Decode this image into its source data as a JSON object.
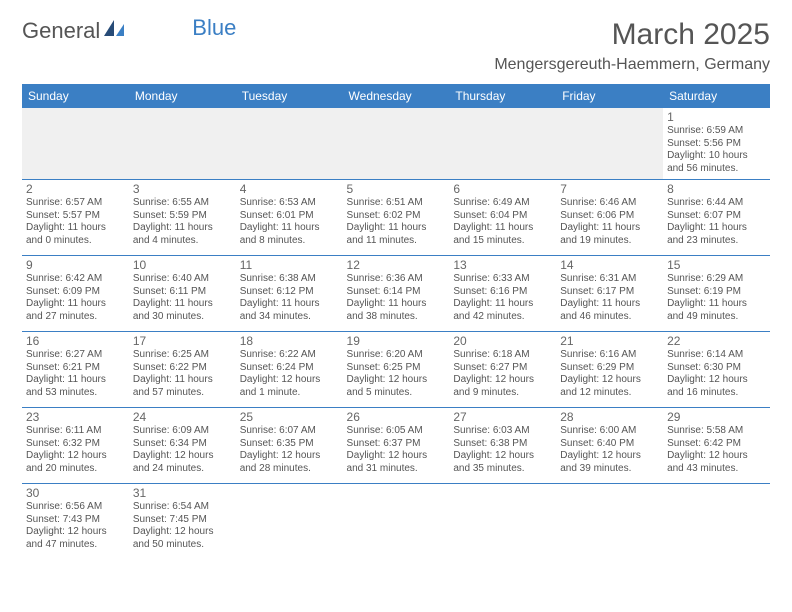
{
  "logo": {
    "name_a": "General",
    "name_b": "Blue"
  },
  "title": "March 2025",
  "location": "Mengersgereuth-Haemmern, Germany",
  "colors": {
    "header_bg": "#3b7fc4",
    "header_fg": "#ffffff",
    "border": "#3b7fc4",
    "text": "#555555",
    "background": "#ffffff",
    "empty_week_bg": "#f0f0f0"
  },
  "day_headers": [
    "Sunday",
    "Monday",
    "Tuesday",
    "Wednesday",
    "Thursday",
    "Friday",
    "Saturday"
  ],
  "weeks": [
    [
      null,
      null,
      null,
      null,
      null,
      null,
      {
        "num": "1",
        "sunrise": "Sunrise: 6:59 AM",
        "sunset": "Sunset: 5:56 PM",
        "daylight": "Daylight: 10 hours and 56 minutes."
      }
    ],
    [
      {
        "num": "2",
        "sunrise": "Sunrise: 6:57 AM",
        "sunset": "Sunset: 5:57 PM",
        "daylight": "Daylight: 11 hours and 0 minutes."
      },
      {
        "num": "3",
        "sunrise": "Sunrise: 6:55 AM",
        "sunset": "Sunset: 5:59 PM",
        "daylight": "Daylight: 11 hours and 4 minutes."
      },
      {
        "num": "4",
        "sunrise": "Sunrise: 6:53 AM",
        "sunset": "Sunset: 6:01 PM",
        "daylight": "Daylight: 11 hours and 8 minutes."
      },
      {
        "num": "5",
        "sunrise": "Sunrise: 6:51 AM",
        "sunset": "Sunset: 6:02 PM",
        "daylight": "Daylight: 11 hours and 11 minutes."
      },
      {
        "num": "6",
        "sunrise": "Sunrise: 6:49 AM",
        "sunset": "Sunset: 6:04 PM",
        "daylight": "Daylight: 11 hours and 15 minutes."
      },
      {
        "num": "7",
        "sunrise": "Sunrise: 6:46 AM",
        "sunset": "Sunset: 6:06 PM",
        "daylight": "Daylight: 11 hours and 19 minutes."
      },
      {
        "num": "8",
        "sunrise": "Sunrise: 6:44 AM",
        "sunset": "Sunset: 6:07 PM",
        "daylight": "Daylight: 11 hours and 23 minutes."
      }
    ],
    [
      {
        "num": "9",
        "sunrise": "Sunrise: 6:42 AM",
        "sunset": "Sunset: 6:09 PM",
        "daylight": "Daylight: 11 hours and 27 minutes."
      },
      {
        "num": "10",
        "sunrise": "Sunrise: 6:40 AM",
        "sunset": "Sunset: 6:11 PM",
        "daylight": "Daylight: 11 hours and 30 minutes."
      },
      {
        "num": "11",
        "sunrise": "Sunrise: 6:38 AM",
        "sunset": "Sunset: 6:12 PM",
        "daylight": "Daylight: 11 hours and 34 minutes."
      },
      {
        "num": "12",
        "sunrise": "Sunrise: 6:36 AM",
        "sunset": "Sunset: 6:14 PM",
        "daylight": "Daylight: 11 hours and 38 minutes."
      },
      {
        "num": "13",
        "sunrise": "Sunrise: 6:33 AM",
        "sunset": "Sunset: 6:16 PM",
        "daylight": "Daylight: 11 hours and 42 minutes."
      },
      {
        "num": "14",
        "sunrise": "Sunrise: 6:31 AM",
        "sunset": "Sunset: 6:17 PM",
        "daylight": "Daylight: 11 hours and 46 minutes."
      },
      {
        "num": "15",
        "sunrise": "Sunrise: 6:29 AM",
        "sunset": "Sunset: 6:19 PM",
        "daylight": "Daylight: 11 hours and 49 minutes."
      }
    ],
    [
      {
        "num": "16",
        "sunrise": "Sunrise: 6:27 AM",
        "sunset": "Sunset: 6:21 PM",
        "daylight": "Daylight: 11 hours and 53 minutes."
      },
      {
        "num": "17",
        "sunrise": "Sunrise: 6:25 AM",
        "sunset": "Sunset: 6:22 PM",
        "daylight": "Daylight: 11 hours and 57 minutes."
      },
      {
        "num": "18",
        "sunrise": "Sunrise: 6:22 AM",
        "sunset": "Sunset: 6:24 PM",
        "daylight": "Daylight: 12 hours and 1 minute."
      },
      {
        "num": "19",
        "sunrise": "Sunrise: 6:20 AM",
        "sunset": "Sunset: 6:25 PM",
        "daylight": "Daylight: 12 hours and 5 minutes."
      },
      {
        "num": "20",
        "sunrise": "Sunrise: 6:18 AM",
        "sunset": "Sunset: 6:27 PM",
        "daylight": "Daylight: 12 hours and 9 minutes."
      },
      {
        "num": "21",
        "sunrise": "Sunrise: 6:16 AM",
        "sunset": "Sunset: 6:29 PM",
        "daylight": "Daylight: 12 hours and 12 minutes."
      },
      {
        "num": "22",
        "sunrise": "Sunrise: 6:14 AM",
        "sunset": "Sunset: 6:30 PM",
        "daylight": "Daylight: 12 hours and 16 minutes."
      }
    ],
    [
      {
        "num": "23",
        "sunrise": "Sunrise: 6:11 AM",
        "sunset": "Sunset: 6:32 PM",
        "daylight": "Daylight: 12 hours and 20 minutes."
      },
      {
        "num": "24",
        "sunrise": "Sunrise: 6:09 AM",
        "sunset": "Sunset: 6:34 PM",
        "daylight": "Daylight: 12 hours and 24 minutes."
      },
      {
        "num": "25",
        "sunrise": "Sunrise: 6:07 AM",
        "sunset": "Sunset: 6:35 PM",
        "daylight": "Daylight: 12 hours and 28 minutes."
      },
      {
        "num": "26",
        "sunrise": "Sunrise: 6:05 AM",
        "sunset": "Sunset: 6:37 PM",
        "daylight": "Daylight: 12 hours and 31 minutes."
      },
      {
        "num": "27",
        "sunrise": "Sunrise: 6:03 AM",
        "sunset": "Sunset: 6:38 PM",
        "daylight": "Daylight: 12 hours and 35 minutes."
      },
      {
        "num": "28",
        "sunrise": "Sunrise: 6:00 AM",
        "sunset": "Sunset: 6:40 PM",
        "daylight": "Daylight: 12 hours and 39 minutes."
      },
      {
        "num": "29",
        "sunrise": "Sunrise: 5:58 AM",
        "sunset": "Sunset: 6:42 PM",
        "daylight": "Daylight: 12 hours and 43 minutes."
      }
    ],
    [
      {
        "num": "30",
        "sunrise": "Sunrise: 6:56 AM",
        "sunset": "Sunset: 7:43 PM",
        "daylight": "Daylight: 12 hours and 47 minutes."
      },
      {
        "num": "31",
        "sunrise": "Sunrise: 6:54 AM",
        "sunset": "Sunset: 7:45 PM",
        "daylight": "Daylight: 12 hours and 50 minutes."
      },
      null,
      null,
      null,
      null,
      null
    ]
  ]
}
